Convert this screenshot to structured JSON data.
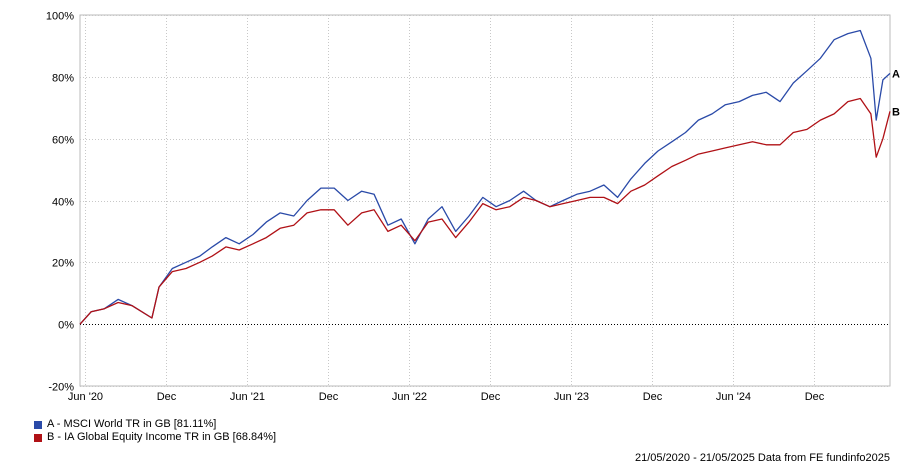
{
  "chart_data": {
    "type": "line",
    "y_ticks": [
      "-20%",
      "0%",
      "20%",
      "40%",
      "60%",
      "80%",
      "100%"
    ],
    "ylim": [
      -20,
      100
    ],
    "x_tick_labels": [
      "Jun '20",
      "Dec",
      "Jun '21",
      "Dec",
      "Jun '22",
      "Dec",
      "Jun '23",
      "Dec",
      "Jun '24",
      "Dec"
    ],
    "x_tick_dates": [
      "2020-06-01",
      "2020-12-01",
      "2021-06-01",
      "2021-12-01",
      "2022-06-01",
      "2022-12-01",
      "2023-06-01",
      "2023-12-01",
      "2024-06-01",
      "2024-12-01"
    ],
    "x_range": [
      "2020-05-21",
      "2025-05-21"
    ],
    "grid": true,
    "series": [
      {
        "name": "A - MSCI World TR in GB [81.11%]",
        "end_label": "A",
        "color": "#2a4aa8",
        "x": [
          "2020-05-21",
          "2020-06-15",
          "2020-07-15",
          "2020-08-15",
          "2020-09-15",
          "2020-10-30",
          "2020-11-15",
          "2020-12-15",
          "2021-01-15",
          "2021-02-15",
          "2021-03-15",
          "2021-04-15",
          "2021-05-15",
          "2021-06-15",
          "2021-07-15",
          "2021-08-15",
          "2021-09-15",
          "2021-10-15",
          "2021-11-15",
          "2021-12-15",
          "2022-01-15",
          "2022-02-15",
          "2022-03-15",
          "2022-04-15",
          "2022-05-15",
          "2022-06-15",
          "2022-07-15",
          "2022-08-15",
          "2022-09-15",
          "2022-10-15",
          "2022-11-15",
          "2022-12-15",
          "2023-01-15",
          "2023-02-15",
          "2023-03-15",
          "2023-04-15",
          "2023-05-15",
          "2023-06-15",
          "2023-07-15",
          "2023-08-15",
          "2023-09-15",
          "2023-10-15",
          "2023-11-15",
          "2023-12-15",
          "2024-01-15",
          "2024-02-15",
          "2024-03-15",
          "2024-04-15",
          "2024-05-15",
          "2024-06-15",
          "2024-07-15",
          "2024-08-15",
          "2024-09-15",
          "2024-10-15",
          "2024-11-15",
          "2024-12-15",
          "2025-01-15",
          "2025-02-15",
          "2025-03-15",
          "2025-04-08",
          "2025-04-20",
          "2025-05-05",
          "2025-05-21"
        ],
        "values": [
          0,
          4,
          5,
          8,
          6,
          2,
          12,
          18,
          20,
          22,
          25,
          28,
          26,
          29,
          33,
          36,
          35,
          40,
          44,
          44,
          40,
          43,
          42,
          32,
          34,
          26,
          34,
          38,
          30,
          35,
          41,
          38,
          40,
          43,
          40,
          38,
          40,
          42,
          43,
          45,
          41,
          47,
          52,
          56,
          59,
          62,
          66,
          68,
          71,
          72,
          74,
          75,
          72,
          78,
          82,
          86,
          92,
          94,
          95,
          86,
          66,
          79,
          81.11
        ]
      },
      {
        "name": "B - IA Global Equity Income TR in GB [68.84%]",
        "end_label": "B",
        "color": "#b01116",
        "x": [
          "2020-05-21",
          "2020-06-15",
          "2020-07-15",
          "2020-08-15",
          "2020-09-15",
          "2020-10-30",
          "2020-11-15",
          "2020-12-15",
          "2021-01-15",
          "2021-02-15",
          "2021-03-15",
          "2021-04-15",
          "2021-05-15",
          "2021-06-15",
          "2021-07-15",
          "2021-08-15",
          "2021-09-15",
          "2021-10-15",
          "2021-11-15",
          "2021-12-15",
          "2022-01-15",
          "2022-02-15",
          "2022-03-15",
          "2022-04-15",
          "2022-05-15",
          "2022-06-15",
          "2022-07-15",
          "2022-08-15",
          "2022-09-15",
          "2022-10-15",
          "2022-11-15",
          "2022-12-15",
          "2023-01-15",
          "2023-02-15",
          "2023-03-15",
          "2023-04-15",
          "2023-05-15",
          "2023-06-15",
          "2023-07-15",
          "2023-08-15",
          "2023-09-15",
          "2023-10-15",
          "2023-11-15",
          "2023-12-15",
          "2024-01-15",
          "2024-02-15",
          "2024-03-15",
          "2024-04-15",
          "2024-05-15",
          "2024-06-15",
          "2024-07-15",
          "2024-08-15",
          "2024-09-15",
          "2024-10-15",
          "2024-11-15",
          "2024-12-15",
          "2025-01-15",
          "2025-02-15",
          "2025-03-15",
          "2025-04-08",
          "2025-04-20",
          "2025-05-05",
          "2025-05-21"
        ],
        "values": [
          0,
          4,
          5,
          7,
          6,
          2,
          12,
          17,
          18,
          20,
          22,
          25,
          24,
          26,
          28,
          31,
          32,
          36,
          37,
          37,
          32,
          36,
          37,
          30,
          32,
          27,
          33,
          34,
          28,
          33,
          39,
          37,
          38,
          41,
          40,
          38,
          39,
          40,
          41,
          41,
          39,
          43,
          45,
          48,
          51,
          53,
          55,
          56,
          57,
          58,
          59,
          58,
          58,
          62,
          63,
          66,
          68,
          72,
          73,
          68,
          54,
          60,
          68.84
        ]
      }
    ]
  },
  "legend": {
    "a_label": "A - MSCI World TR in GB [81.11%]",
    "b_label": "B - IA Global Equity Income TR in GB [68.84%]"
  },
  "footer_text": "21/05/2020 - 21/05/2025 Data from FE fundinfo2025"
}
